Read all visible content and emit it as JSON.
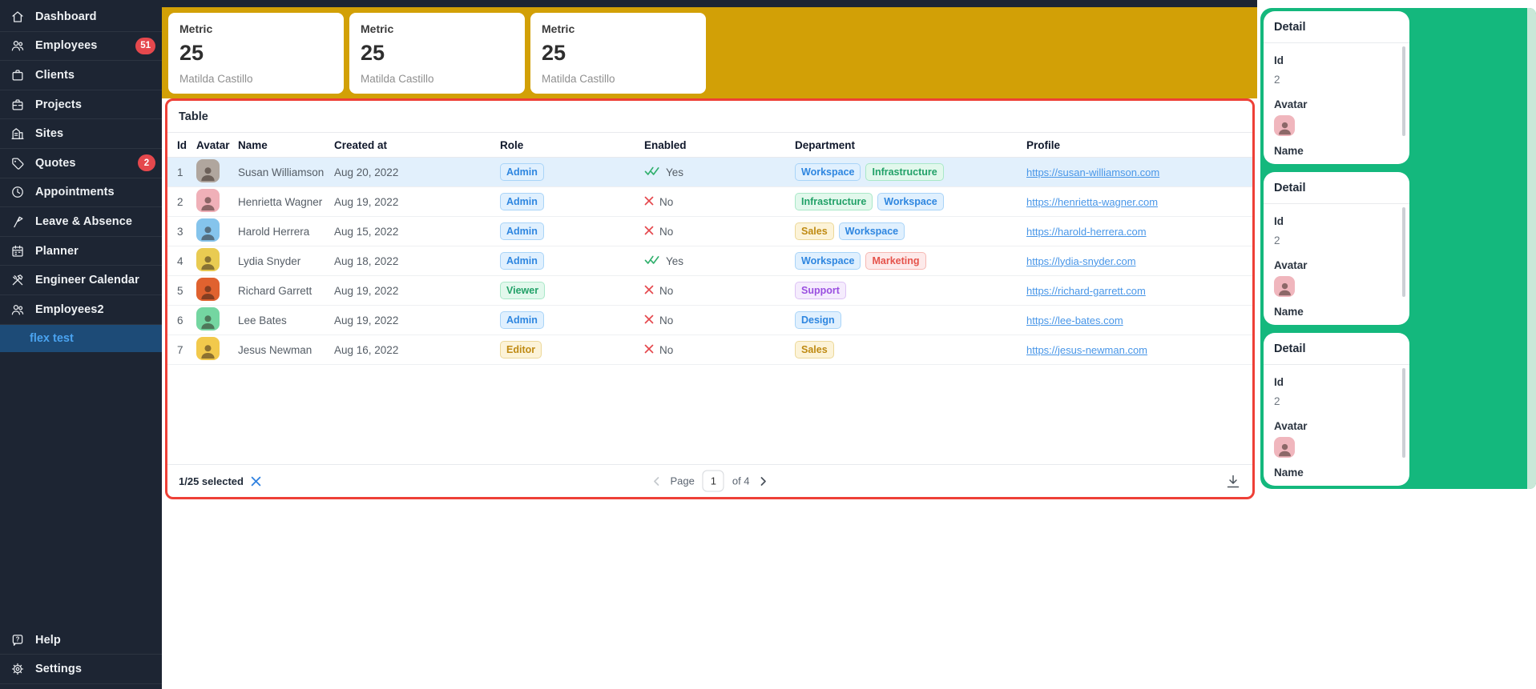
{
  "sidebar": {
    "items": [
      {
        "label": "Dashboard",
        "icon": "home-icon"
      },
      {
        "label": "Employees",
        "icon": "people-icon",
        "badge": "51"
      },
      {
        "label": "Clients",
        "icon": "briefcase-icon"
      },
      {
        "label": "Projects",
        "icon": "briefcase-handle-icon"
      },
      {
        "label": "Sites",
        "icon": "building-icon"
      },
      {
        "label": "Quotes",
        "icon": "tag-icon",
        "badge": "2"
      },
      {
        "label": "Appointments",
        "icon": "clock-icon"
      },
      {
        "label": "Leave & Absence",
        "icon": "flag-icon"
      },
      {
        "label": "Planner",
        "icon": "calendar-icon"
      },
      {
        "label": "Engineer Calendar",
        "icon": "tools-icon"
      },
      {
        "label": "Employees2",
        "icon": "people-icon"
      }
    ],
    "active_subitem": {
      "label": "flex test"
    },
    "footer_items": [
      {
        "label": "Help",
        "icon": "help-icon"
      },
      {
        "label": "Settings",
        "icon": "gear-icon"
      }
    ]
  },
  "metrics": [
    {
      "title": "Metric",
      "value": "25",
      "subtitle": "Matilda Castillo"
    },
    {
      "title": "Metric",
      "value": "25",
      "subtitle": "Matilda Castillo"
    },
    {
      "title": "Metric",
      "value": "25",
      "subtitle": "Matilda Castillo"
    }
  ],
  "table": {
    "title": "Table",
    "columns": [
      "Id",
      "Avatar",
      "Name",
      "Created at",
      "Role",
      "Enabled",
      "Department",
      "Profile"
    ],
    "rows": [
      {
        "id": "1",
        "name": "Susan Williamson",
        "created_at": "Aug 20, 2022",
        "role": "Admin",
        "enabled": true,
        "enabled_label": "Yes",
        "departments": [
          "Workspace",
          "Infrastructure"
        ],
        "profile": "https://susan-williamson.com",
        "selected": true,
        "avatar_color": "#b0a69e"
      },
      {
        "id": "2",
        "name": "Henrietta Wagner",
        "created_at": "Aug 19, 2022",
        "role": "Admin",
        "enabled": false,
        "enabled_label": "No",
        "departments": [
          "Infrastructure",
          "Workspace"
        ],
        "profile": "https://henrietta-wagner.com",
        "selected": false,
        "avatar_color": "#f0b0b8"
      },
      {
        "id": "3",
        "name": "Harold Herrera",
        "created_at": "Aug 15, 2022",
        "role": "Admin",
        "enabled": false,
        "enabled_label": "No",
        "departments": [
          "Sales",
          "Workspace"
        ],
        "profile": "https://harold-herrera.com",
        "selected": false,
        "avatar_color": "#85c4ec"
      },
      {
        "id": "4",
        "name": "Lydia Snyder",
        "created_at": "Aug 18, 2022",
        "role": "Admin",
        "enabled": true,
        "enabled_label": "Yes",
        "departments": [
          "Workspace",
          "Marketing"
        ],
        "profile": "https://lydia-snyder.com",
        "selected": false,
        "avatar_color": "#e9cb52"
      },
      {
        "id": "5",
        "name": "Richard Garrett",
        "created_at": "Aug 19, 2022",
        "role": "Viewer",
        "enabled": false,
        "enabled_label": "No",
        "departments": [
          "Support"
        ],
        "profile": "https://richard-garrett.com",
        "selected": false,
        "avatar_color": "#e0622f"
      },
      {
        "id": "6",
        "name": "Lee Bates",
        "created_at": "Aug 19, 2022",
        "role": "Admin",
        "enabled": false,
        "enabled_label": "No",
        "departments": [
          "Design"
        ],
        "profile": "https://lee-bates.com",
        "selected": false,
        "avatar_color": "#74d6a1"
      },
      {
        "id": "7",
        "name": "Jesus Newman",
        "created_at": "Aug 16, 2022",
        "role": "Editor",
        "enabled": false,
        "enabled_label": "No",
        "departments": [
          "Sales"
        ],
        "profile": "https://jesus-newman.com",
        "selected": false,
        "avatar_color": "#f2c94c"
      }
    ],
    "badge_variants": {
      "Admin": "blue",
      "Viewer": "green",
      "Editor": "yellow",
      "Workspace": "blue",
      "Infrastructure": "green",
      "Sales": "yellow",
      "Marketing": "red",
      "Support": "purple",
      "Design": "blue"
    },
    "footer": {
      "selected_text": "1/25 selected",
      "page_label": "Page",
      "page_value": "1",
      "pages_label": "of 4"
    }
  },
  "detail_cards": [
    {
      "title": "Detail",
      "id_label": "Id",
      "id_value": "2",
      "avatar_label": "Avatar",
      "avatar_color": "#f0b6bd",
      "name_label": "Name"
    },
    {
      "title": "Detail",
      "id_label": "Id",
      "id_value": "2",
      "avatar_label": "Avatar",
      "avatar_color": "#f0b6bd",
      "name_label": "Name"
    },
    {
      "title": "Detail",
      "id_label": "Id",
      "id_value": "2",
      "avatar_label": "Avatar",
      "avatar_color": "#f0b6bd",
      "name_label": "Name"
    }
  ],
  "colors": {
    "sidebar_bg": "#1d2533",
    "sidebar_active_bg": "#1d4b77",
    "sidebar_active_text": "#4aa3f0",
    "badge_red": "#e5484d",
    "gold_header": "#d2a006",
    "table_border_red": "#ee4037",
    "selected_row_bg": "#e2f0fc",
    "green_panel": "#14b87d",
    "link_blue": "#4896e8",
    "check_green": "#2eaf6b"
  }
}
